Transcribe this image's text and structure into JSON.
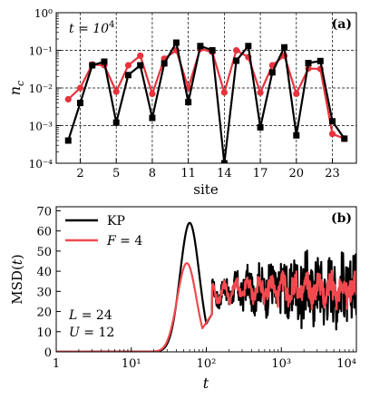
{
  "chart_data": [
    {
      "type": "line",
      "panel_label": "(a)",
      "annotation": "t = 10⁴",
      "xlabel": "site",
      "ylabel": "n_c",
      "yscale": "log",
      "xlim": [
        0,
        25
      ],
      "ylim": [
        0.0001,
        1
      ],
      "xticks": [
        2,
        5,
        8,
        11,
        14,
        17,
        20,
        23
      ],
      "yticks": [
        {
          "value": 1,
          "label": "10⁰"
        },
        {
          "value": 0.1,
          "label": "10⁻¹"
        },
        {
          "value": 0.01,
          "label": "10⁻²"
        },
        {
          "value": 0.001,
          "label": "10⁻³"
        },
        {
          "value": 0.0001,
          "label": "10⁻⁴"
        }
      ],
      "grid": "dashed",
      "series": [
        {
          "color": "#e8323c",
          "marker": "circle",
          "x": [
            1,
            2,
            3,
            4,
            5,
            6,
            7,
            8,
            9,
            10,
            11,
            12,
            13,
            14,
            15,
            16,
            17,
            18,
            19,
            20,
            21,
            22,
            23,
            24
          ],
          "y": [
            0.005,
            0.01,
            0.042,
            0.04,
            0.008,
            0.04,
            0.072,
            0.007,
            0.06,
            0.1,
            0.01,
            0.11,
            0.09,
            0.0076,
            0.1,
            0.066,
            0.0075,
            0.04,
            0.072,
            0.007,
            0.033,
            0.032,
            0.0006,
            0.00045
          ]
        },
        {
          "color": "#000000",
          "marker": "square",
          "x": [
            1,
            2,
            3,
            4,
            5,
            6,
            7,
            8,
            9,
            10,
            11,
            12,
            13,
            14,
            15,
            16,
            17,
            18,
            19,
            20,
            21,
            22,
            23,
            24
          ],
          "y": [
            0.0004,
            0.004,
            0.04,
            0.05,
            0.0012,
            0.022,
            0.04,
            0.0016,
            0.045,
            0.16,
            0.0042,
            0.13,
            0.1,
            0.0001,
            0.053,
            0.13,
            0.0009,
            0.026,
            0.12,
            0.00055,
            0.046,
            0.052,
            0.0013,
            0.00045
          ]
        }
      ]
    },
    {
      "type": "line",
      "panel_label": "(b)",
      "xlabel": "t",
      "ylabel": "MSD(t)",
      "xscale": "log",
      "xlim": [
        1,
        10000
      ],
      "ylim": [
        0,
        72
      ],
      "xticks": [
        {
          "value": 1,
          "label": "1"
        },
        {
          "value": 10,
          "label": "10¹"
        },
        {
          "value": 100,
          "label": "10²"
        },
        {
          "value": 1000,
          "label": "10³"
        },
        {
          "value": 10000,
          "label": "10⁴"
        }
      ],
      "yticks": [
        0,
        10,
        20,
        30,
        40,
        50,
        60,
        70
      ],
      "legend_position": "top-left",
      "annotations": [
        "L = 24",
        "U = 12"
      ],
      "series": [
        {
          "name": "KP",
          "color": "#000000",
          "peak_t": 60,
          "peak_value": 64,
          "plateau_mean": 31,
          "fluctuation_amplitude": 20
        },
        {
          "name": "F = 4",
          "color": "#f04a4f",
          "peak_t": 55,
          "peak_value": 44,
          "plateau_mean": 31,
          "fluctuation_amplitude": 8
        }
      ]
    }
  ]
}
